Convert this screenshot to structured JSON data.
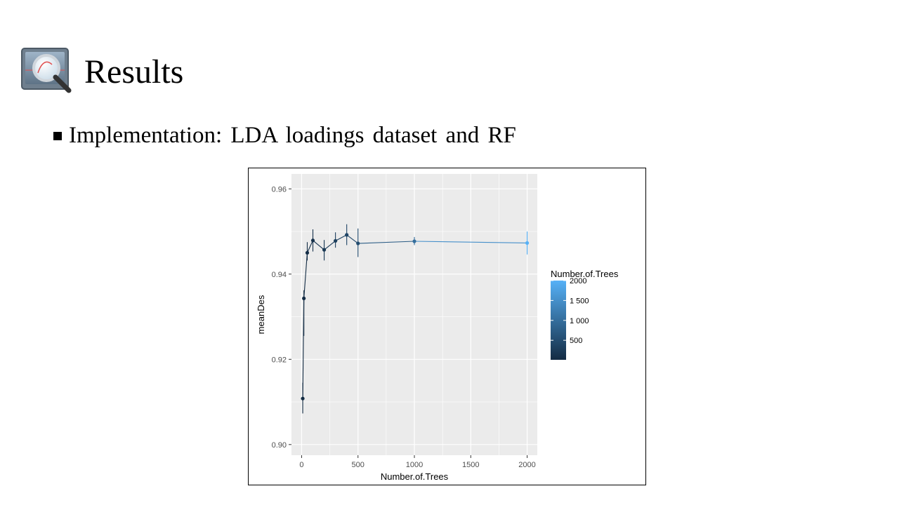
{
  "slide": {
    "title": "Results",
    "bullet": "Implementation: LDA loadings dataset and RF",
    "logo_icon": "magnifier-over-monitor-icon"
  },
  "colors": {
    "panel_bg": "#ebebeb",
    "grid": "#ffffff",
    "scale_low": "#132b43",
    "scale_high": "#56b1f7"
  },
  "chart_data": {
    "type": "line",
    "xlabel": "Number.of.Trees",
    "ylabel": "meanDes",
    "xlim": [
      -90,
      2090
    ],
    "ylim": [
      0.8975,
      0.9635
    ],
    "xticks": [
      0,
      500,
      1000,
      1500,
      2000
    ],
    "yticks": [
      0.9,
      0.92,
      0.94,
      0.96
    ],
    "ytick_labels": [
      "0.90",
      "0.92",
      "0.94",
      "0.96"
    ],
    "grid": true,
    "points": [
      {
        "x": 10,
        "y": 0.9108,
        "lo": 0.9073,
        "hi": 0.9145
      },
      {
        "x": 20,
        "y": 0.9343,
        "lo": 0.9255,
        "hi": 0.9362
      },
      {
        "x": 50,
        "y": 0.945,
        "lo": 0.9432,
        "hi": 0.9475
      },
      {
        "x": 100,
        "y": 0.9479,
        "lo": 0.9453,
        "hi": 0.9505
      },
      {
        "x": 200,
        "y": 0.9457,
        "lo": 0.9432,
        "hi": 0.948
      },
      {
        "x": 300,
        "y": 0.9478,
        "lo": 0.9462,
        "hi": 0.9498
      },
      {
        "x": 400,
        "y": 0.9492,
        "lo": 0.9468,
        "hi": 0.9517
      },
      {
        "x": 500,
        "y": 0.9472,
        "lo": 0.944,
        "hi": 0.9507
      },
      {
        "x": 1000,
        "y": 0.9477,
        "lo": 0.9468,
        "hi": 0.9487
      },
      {
        "x": 2000,
        "y": 0.9473,
        "lo": 0.9446,
        "hi": 0.95
      }
    ],
    "legend": {
      "title": "Number.of.Trees",
      "placement": "right",
      "range": [
        10,
        2000
      ],
      "breaks": [
        500,
        1000,
        1500,
        2000
      ],
      "break_labels": [
        "500",
        "1 000",
        "1 500",
        "2000"
      ]
    }
  }
}
